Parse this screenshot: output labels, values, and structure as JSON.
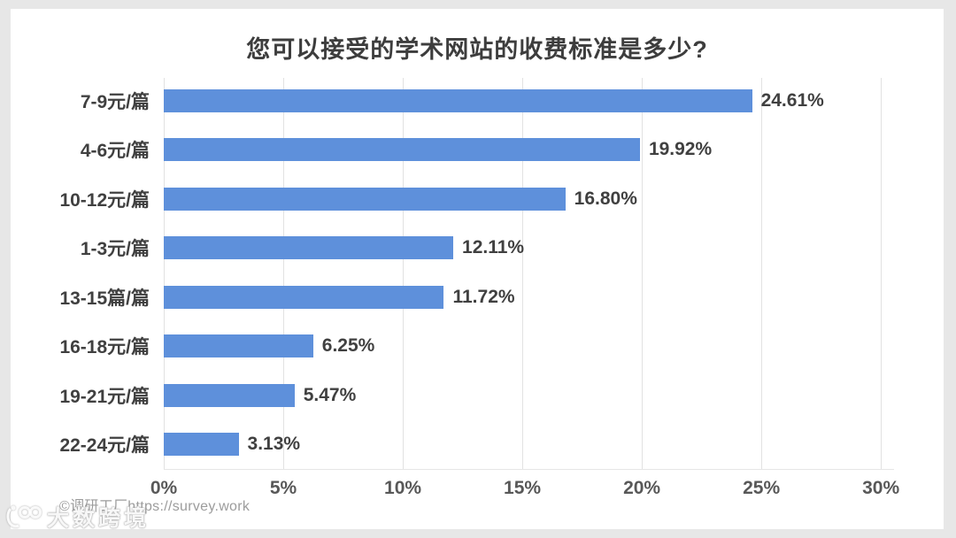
{
  "title": "您可以接受的学术网站的收费标准是多少?",
  "chart_data": {
    "type": "bar",
    "orientation": "horizontal",
    "title": "您可以接受的学术网站的收费标准是多少?",
    "categories": [
      "7-9元/篇",
      "4-6元/篇",
      "10-12元/篇",
      "1-3元/篇",
      "13-15篇/篇",
      "16-18元/篇",
      "19-21元/篇",
      "22-24元/篇"
    ],
    "values": [
      24.61,
      19.92,
      16.8,
      12.11,
      11.72,
      6.25,
      5.47,
      3.13
    ],
    "value_labels": [
      "24.61%",
      "19.92%",
      "16.80%",
      "12.11%",
      "11.72%",
      "6.25%",
      "5.47%",
      "3.13%"
    ],
    "xlabel": "",
    "ylabel": "",
    "x_ticks": [
      "0%",
      "5%",
      "10%",
      "15%",
      "20%",
      "25%",
      "30%"
    ],
    "x_tick_values": [
      0,
      5,
      10,
      15,
      20,
      25,
      30
    ],
    "xlim": [
      0,
      30.55
    ],
    "grid": true,
    "legend": false,
    "bar_color": "#5E90DB",
    "gridline_color": "#e2e2e2",
    "label_color": "#404040",
    "tick_color": "#585858"
  },
  "footer": {
    "copyright": "©调研工厂https://survey.work",
    "watermark_logo": "大数跨境"
  }
}
